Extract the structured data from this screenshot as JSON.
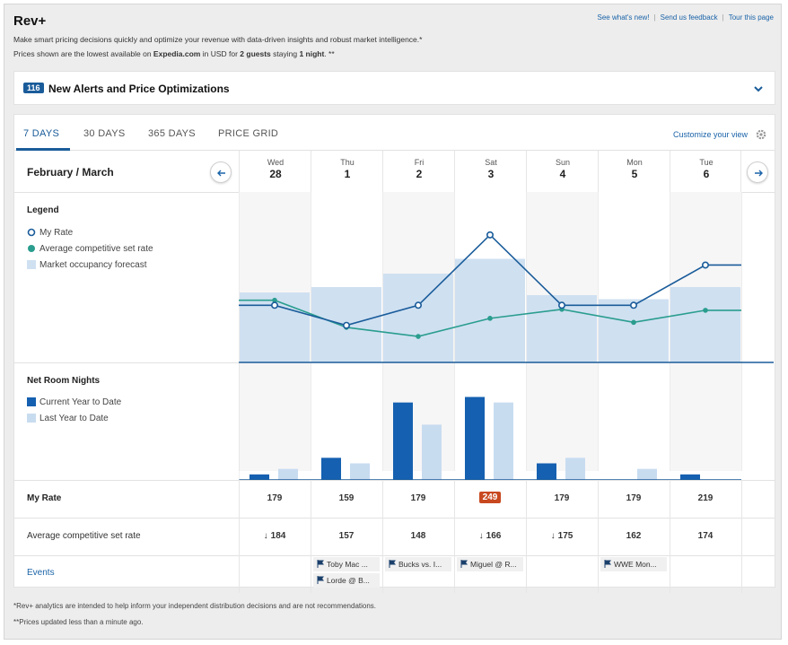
{
  "header": {
    "title": "Rev+",
    "links": [
      "See what's new!",
      "Send us feedback",
      "Tour this page"
    ],
    "description": "Make smart pricing decisions quickly and optimize your revenue with data-driven insights and robust market intelligence.*",
    "prices_prefix": "Prices shown are the lowest available on ",
    "prices_site": "Expedia.com",
    "prices_mid1": " in USD for ",
    "prices_guests": "2 guests",
    "prices_mid2": " staying ",
    "prices_nights": "1 night",
    "prices_suffix": ". **"
  },
  "alerts": {
    "count": "116",
    "title": "New Alerts and Price Optimizations"
  },
  "tabs": [
    {
      "label": "7 DAYS",
      "active": true
    },
    {
      "label": "30 DAYS",
      "active": false
    },
    {
      "label": "365 DAYS",
      "active": false
    },
    {
      "label": "PRICE GRID",
      "active": false
    }
  ],
  "customize_label": "Customize your view",
  "month_label": "February / March",
  "days": [
    {
      "dow": "Wed",
      "num": "28"
    },
    {
      "dow": "Thu",
      "num": "1"
    },
    {
      "dow": "Fri",
      "num": "2"
    },
    {
      "dow": "Sat",
      "num": "3"
    },
    {
      "dow": "Sun",
      "num": "4"
    },
    {
      "dow": "Mon",
      "num": "5"
    },
    {
      "dow": "Tue",
      "num": "6"
    }
  ],
  "legend": {
    "title": "Legend",
    "items": [
      "My Rate",
      "Average competitive set rate",
      "Market occupancy forecast"
    ]
  },
  "net_room_nights": {
    "title": "Net Room Nights",
    "items": [
      "Current Year to Date",
      "Last Year to Date"
    ]
  },
  "colors": {
    "brand_blue": "#1a5c9a",
    "teal": "#2a9d8f",
    "occupancy": "#cfe0f1",
    "current_year": "#1560b0",
    "last_year": "#c8dcf0",
    "highlight": "#c8481f"
  },
  "chart_data": [
    {
      "type": "line",
      "categories": [
        "Wed 28",
        "Thu 1",
        "Fri 2",
        "Sat 3",
        "Sun 4",
        "Mon 5",
        "Tue 6"
      ],
      "series": [
        {
          "name": "My Rate",
          "values": [
            179,
            159,
            179,
            249,
            179,
            179,
            219
          ]
        },
        {
          "name": "Average competitive set rate",
          "values": [
            184,
            157,
            148,
            166,
            175,
            162,
            174
          ]
        }
      ],
      "bars": {
        "name": "Market occupancy forecast",
        "values": [
          0.52,
          0.56,
          0.66,
          0.77,
          0.5,
          0.47,
          0.56
        ]
      }
    },
    {
      "type": "bar",
      "categories": [
        "Wed 28",
        "Thu 1",
        "Fri 2",
        "Sat 3",
        "Sun 4",
        "Mon 5",
        "Tue 6"
      ],
      "series": [
        {
          "name": "Current Year to Date",
          "values": [
            0.5,
            2,
            7,
            7.5,
            1.5,
            0,
            0.5
          ]
        },
        {
          "name": "Last Year to Date",
          "values": [
            1,
            1.5,
            5,
            7,
            2,
            1,
            0
          ]
        }
      ]
    }
  ],
  "rows": {
    "my_rate_label": "My Rate",
    "my_rate": [
      "179",
      "159",
      "179",
      "249",
      "179",
      "179",
      "219"
    ],
    "comp_label": "Average competitive set rate",
    "comp": [
      {
        "value": "184",
        "down": true
      },
      {
        "value": "157",
        "down": false
      },
      {
        "value": "148",
        "down": false
      },
      {
        "value": "166",
        "down": true
      },
      {
        "value": "175",
        "down": true
      },
      {
        "value": "162",
        "down": false
      },
      {
        "value": "174",
        "down": false
      }
    ],
    "events_label": "Events",
    "events": [
      {
        "day": 1,
        "slot": 0,
        "text": "Toby Mac ..."
      },
      {
        "day": 1,
        "slot": 1,
        "text": "Lorde @ B..."
      },
      {
        "day": 2,
        "slot": 0,
        "text": "Bucks vs. I..."
      },
      {
        "day": 3,
        "slot": 0,
        "text": "Miguel @ R..."
      },
      {
        "day": 5,
        "slot": 0,
        "text": "WWE Mon..."
      }
    ]
  },
  "footer": {
    "note1": "*Rev+ analytics are intended to help inform your independent distribution decisions and are not recommendations.",
    "note2": "**Prices updated less than a minute ago."
  }
}
